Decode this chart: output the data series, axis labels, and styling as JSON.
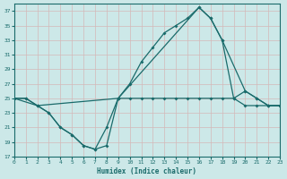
{
  "xlabel": "Humidex (Indice chaleur)",
  "ylabel": "",
  "bg_color": "#cce8e8",
  "grid_color": "#d4b8b8",
  "line_color": "#1a6b6b",
  "xlim": [
    0,
    23
  ],
  "ylim": [
    17,
    38
  ],
  "yticks": [
    17,
    19,
    21,
    23,
    25,
    27,
    29,
    31,
    33,
    35,
    37
  ],
  "xticks": [
    0,
    1,
    2,
    3,
    4,
    5,
    6,
    7,
    8,
    9,
    10,
    11,
    12,
    13,
    14,
    15,
    16,
    17,
    18,
    19,
    20,
    21,
    22,
    23
  ],
  "line1_x": [
    0,
    1,
    2,
    3,
    4,
    5,
    6,
    7,
    8,
    9,
    10,
    11,
    12,
    13,
    14,
    15,
    16,
    17,
    18,
    19,
    20,
    21,
    22,
    23
  ],
  "line1_y": [
    25,
    25,
    24,
    23,
    21,
    20,
    18.5,
    18,
    18.5,
    25,
    25,
    25,
    25,
    25,
    25,
    25,
    25,
    25,
    25,
    25,
    24,
    24,
    24,
    24
  ],
  "line2_x": [
    0,
    1,
    2,
    3,
    4,
    5,
    6,
    7,
    8,
    9,
    10,
    11,
    12,
    13,
    14,
    15,
    16,
    17,
    18,
    19,
    20,
    21,
    22,
    23
  ],
  "line2_y": [
    25,
    25,
    24,
    23,
    21,
    20,
    18.5,
    18,
    21,
    25,
    27,
    30,
    32,
    34,
    35,
    36,
    37.5,
    36,
    33,
    25,
    26,
    25,
    24,
    24
  ],
  "line3_x": [
    0,
    2,
    9,
    16,
    17,
    18,
    20,
    21,
    22,
    23
  ],
  "line3_y": [
    25,
    24,
    25,
    37.5,
    36,
    33,
    26,
    25,
    24,
    24
  ]
}
